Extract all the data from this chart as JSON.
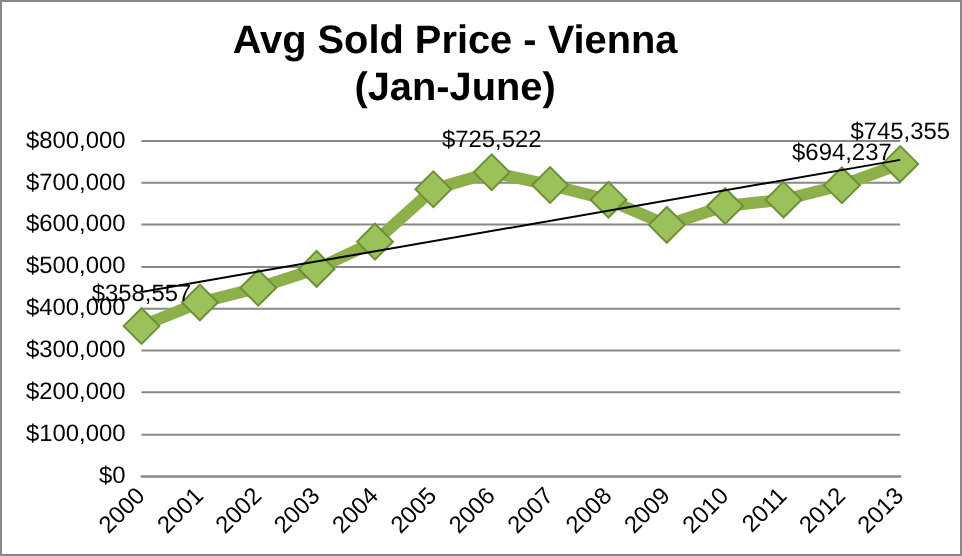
{
  "chart_data": {
    "type": "line",
    "title": "Avg Sold Price - Vienna\n(Jan-June)",
    "categories": [
      "2000",
      "2001",
      "2002",
      "2003",
      "2004",
      "2005",
      "2006",
      "2007",
      "2008",
      "2009",
      "2010",
      "2011",
      "2012",
      "2013"
    ],
    "series": [
      {
        "color": "#8db04a",
        "values": [
          358557,
          415000,
          450000,
          495000,
          560000,
          685000,
          725522,
          695000,
          660000,
          600000,
          645000,
          660000,
          694237,
          745355
        ],
        "value_labels": [
          "$358,557",
          null,
          null,
          null,
          null,
          null,
          "$725,522",
          null,
          null,
          null,
          null,
          null,
          "$694,237",
          "$745,355"
        ],
        "marker": "diamond"
      },
      {
        "type": "line",
        "color": "#000000",
        "values": [
          440000,
          null,
          null,
          null,
          null,
          null,
          null,
          null,
          null,
          null,
          null,
          null,
          null,
          755000
        ],
        "marker": "none"
      }
    ],
    "ylim": [
      0,
      800000
    ],
    "yticks": [
      {
        "value": 0,
        "label": "$0"
      },
      {
        "value": 100000,
        "label": "$100,000"
      },
      {
        "value": 200000,
        "label": "$200,000"
      },
      {
        "value": 300000,
        "label": "$300,000"
      },
      {
        "value": 400000,
        "label": "$400,000"
      },
      {
        "value": 500000,
        "label": "$500,000"
      },
      {
        "value": 600000,
        "label": "$600,000"
      },
      {
        "value": 700000,
        "label": "$700,000"
      },
      {
        "value": 800000,
        "label": "$800,000"
      }
    ],
    "grid": "y",
    "legend": false,
    "line_style": "solid"
  }
}
